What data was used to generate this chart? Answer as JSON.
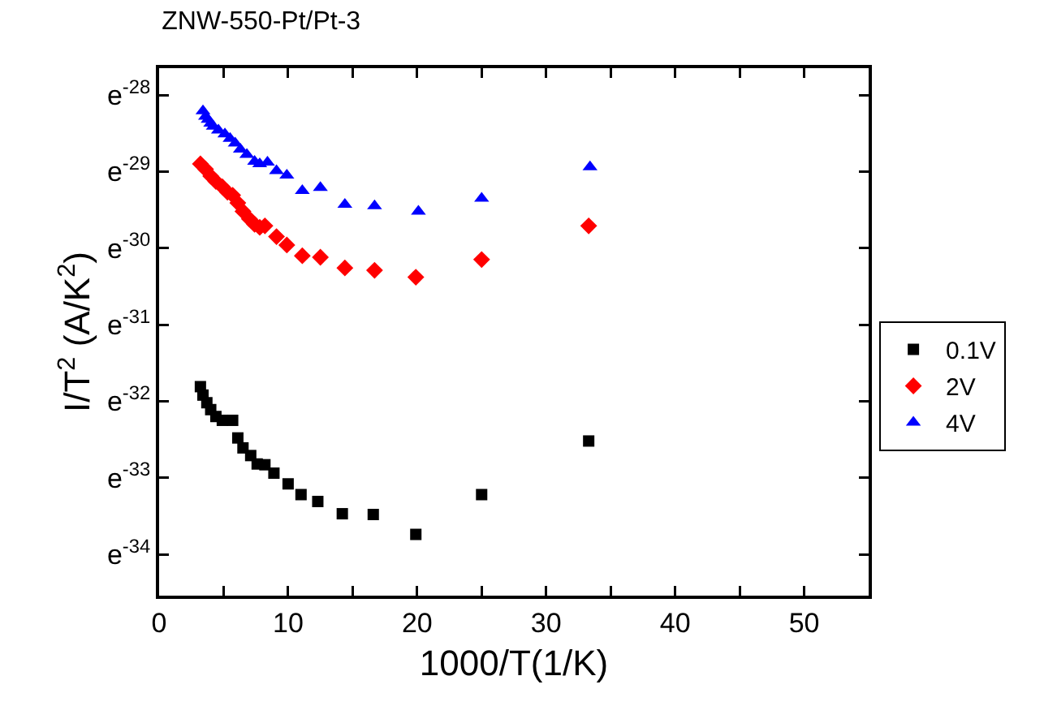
{
  "chart_data": {
    "type": "scatter",
    "title": "ZNW-550-Pt/Pt-3",
    "xlabel": "1000/T(1/K)",
    "ylabel": "I/T$^{2}$ (A/K$^{2}$)",
    "grid": false,
    "legend": "right",
    "xlim": [
      0,
      55
    ],
    "xticks": [
      0,
      {
        "value": 5,
        "label": null
      },
      10,
      {
        "value": 15,
        "label": null
      },
      20,
      {
        "value": 25,
        "label": null
      },
      30,
      {
        "value": 35,
        "label": null
      },
      40,
      {
        "value": 45,
        "label": null
      },
      50,
      {
        "value": 55,
        "label": null
      }
    ],
    "ylim": [
      -34.54,
      -27.65
    ],
    "yticks": [
      {
        "value": -28,
        "label": "e$^{-28}$"
      },
      {
        "value": -29,
        "label": "e$^{-29}$"
      },
      {
        "value": -30,
        "label": "e$^{-30}$"
      },
      {
        "value": -31,
        "label": "e$^{-31}$"
      },
      {
        "value": -32,
        "label": "e$^{-32}$"
      },
      {
        "value": -33,
        "label": "e$^{-33}$"
      },
      {
        "value": -34,
        "label": "e$^{-34}$"
      }
    ],
    "series": [
      {
        "name": "0.1V",
        "color": "#000000",
        "marker": "square",
        "x": [
          3.2,
          3.4,
          3.7,
          4.0,
          4.4,
          4.9,
          5.7,
          6.1,
          6.5,
          7.1,
          7.6,
          8.2,
          8.9,
          10.0,
          11.0,
          12.3,
          14.2,
          16.6,
          19.9,
          25.0,
          33.3
        ],
        "values": [
          -31.81,
          -31.92,
          -32.02,
          -32.11,
          -32.2,
          -32.25,
          -32.25,
          -32.48,
          -32.61,
          -32.71,
          -32.82,
          -32.83,
          -32.94,
          -33.08,
          -33.22,
          -33.31,
          -33.47,
          -33.48,
          -33.74,
          -33.22,
          -32.52
        ]
      },
      {
        "name": "2V",
        "color": "#ff0000",
        "marker": "diamond",
        "x": [
          3.2,
          3.6,
          4.0,
          4.4,
          4.9,
          5.3,
          5.7,
          6.1,
          6.5,
          7.0,
          7.4,
          7.8,
          8.2,
          9.1,
          9.9,
          11.1,
          12.5,
          14.4,
          16.7,
          19.9,
          25.0,
          33.3
        ],
        "values": [
          -28.9,
          -28.97,
          -29.06,
          -29.13,
          -29.2,
          -29.27,
          -29.31,
          -29.41,
          -29.52,
          -29.62,
          -29.69,
          -29.73,
          -29.71,
          -29.85,
          -29.96,
          -30.1,
          -30.12,
          -30.26,
          -30.29,
          -30.38,
          -30.15,
          -29.71
        ]
      },
      {
        "name": "4V",
        "color": "#0000ff",
        "marker": "triangle",
        "x": [
          3.4,
          3.6,
          3.8,
          4.0,
          4.2,
          4.6,
          5.1,
          5.5,
          5.9,
          6.3,
          6.8,
          7.4,
          7.8,
          8.4,
          9.1,
          9.9,
          11.1,
          12.5,
          14.4,
          16.7,
          20.1,
          25.0,
          33.4
        ],
        "values": [
          -28.21,
          -28.28,
          -28.32,
          -28.37,
          -28.41,
          -28.46,
          -28.51,
          -28.57,
          -28.63,
          -28.71,
          -28.78,
          -28.87,
          -28.9,
          -28.88,
          -28.99,
          -29.05,
          -29.25,
          -29.21,
          -29.43,
          -29.45,
          -29.52,
          -29.35,
          -28.94
        ]
      }
    ]
  }
}
